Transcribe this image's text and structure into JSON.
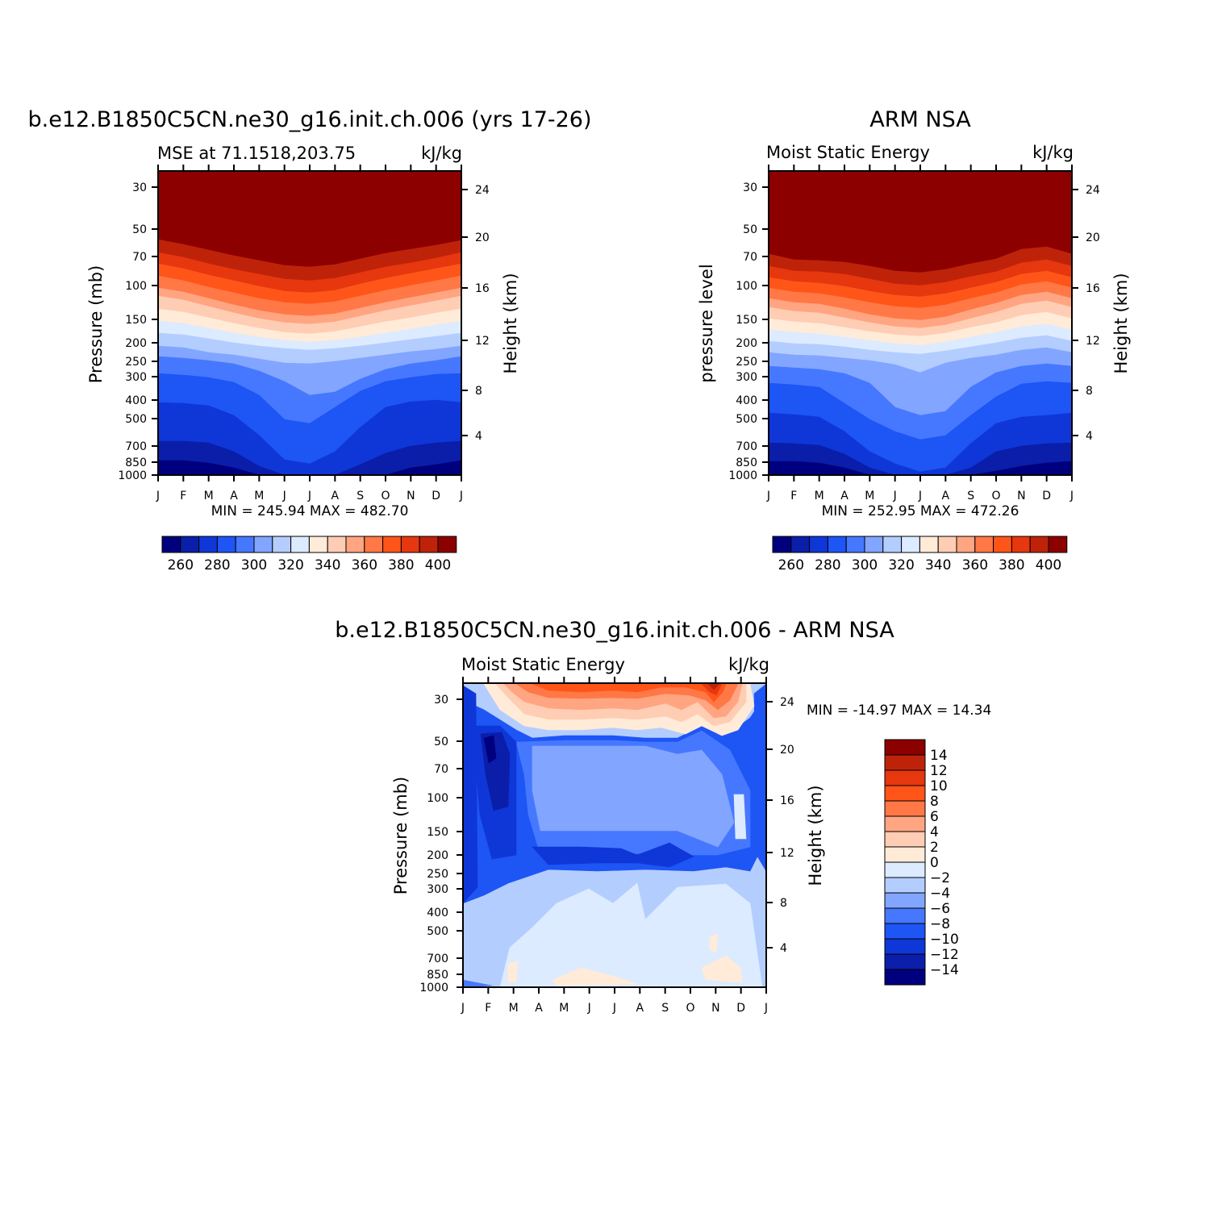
{
  "chart_data": [
    {
      "type": "heatmap",
      "title": "b.e12.B1850C5CN.ne30_g16.init.ch.006 (yrs 17-26)",
      "subtitle_left": "MSE at 71.1518,203.75",
      "subtitle_right": "kJ/kg",
      "ylabel": "Pressure (mb)",
      "y2label": "Height (km)",
      "x_ticks": [
        "J",
        "F",
        "M",
        "A",
        "M",
        "J",
        "J",
        "A",
        "S",
        "O",
        "N",
        "D",
        "J"
      ],
      "y_ticks": [
        "30",
        "50",
        "70",
        "100",
        "150",
        "200",
        "250",
        "300",
        "400",
        "500",
        "700",
        "850",
        "1000"
      ],
      "y2_ticks": [
        "24",
        "20",
        "16",
        "12",
        "8",
        "4"
      ],
      "stats": "MIN = 245.94 MAX = 482.70",
      "colorbar_labels": [
        "260",
        "280",
        "300",
        "320",
        "340",
        "360",
        "380",
        "400"
      ]
    },
    {
      "type": "heatmap",
      "title": "ARM NSA",
      "subtitle_left": "Moist Static Energy",
      "subtitle_right": "kJ/kg",
      "ylabel": "pressure level",
      "y2label": "Height (km)",
      "x_ticks": [
        "J",
        "F",
        "M",
        "A",
        "M",
        "J",
        "J",
        "A",
        "S",
        "O",
        "N",
        "D",
        "J"
      ],
      "y_ticks": [
        "30",
        "50",
        "70",
        "100",
        "150",
        "200",
        "250",
        "300",
        "400",
        "500",
        "700",
        "850",
        "1000"
      ],
      "y2_ticks": [
        "24",
        "20",
        "16",
        "12",
        "8",
        "4"
      ],
      "stats": "MIN = 252.95 MAX = 472.26",
      "colorbar_labels": [
        "260",
        "280",
        "300",
        "320",
        "340",
        "360",
        "380",
        "400"
      ]
    },
    {
      "type": "heatmap",
      "title": "b.e12.B1850C5CN.ne30_g16.init.ch.006 - ARM NSA",
      "subtitle_left": "Moist Static Energy",
      "subtitle_right": "kJ/kg",
      "ylabel": "Pressure (mb)",
      "y2label": "Height (km)",
      "x_ticks": [
        "J",
        "F",
        "M",
        "A",
        "M",
        "J",
        "J",
        "A",
        "S",
        "O",
        "N",
        "D",
        "J"
      ],
      "y_ticks": [
        "30",
        "50",
        "70",
        "100",
        "150",
        "200",
        "250",
        "300",
        "400",
        "500",
        "700",
        "850",
        "1000"
      ],
      "y2_ticks": [
        "24",
        "20",
        "16",
        "12",
        "8",
        "4"
      ],
      "stats": "MIN = -14.97 MAX =  14.34",
      "colorbar_labels": [
        "14",
        "12",
        "10",
        "8",
        "6",
        "4",
        "2",
        "0",
        "-2",
        "-4",
        "-6",
        "-8",
        "-10",
        "-12",
        "-14"
      ]
    }
  ],
  "palette": [
    "#00007f",
    "#0a1eaa",
    "#0f37d7",
    "#1e55f5",
    "#4678ff",
    "#82a5ff",
    "#b4cdff",
    "#dcebff",
    "#ffebd7",
    "#ffcdb4",
    "#ffa582",
    "#ff7846",
    "#ff5519",
    "#e6370f",
    "#be230a",
    "#8c0000"
  ]
}
